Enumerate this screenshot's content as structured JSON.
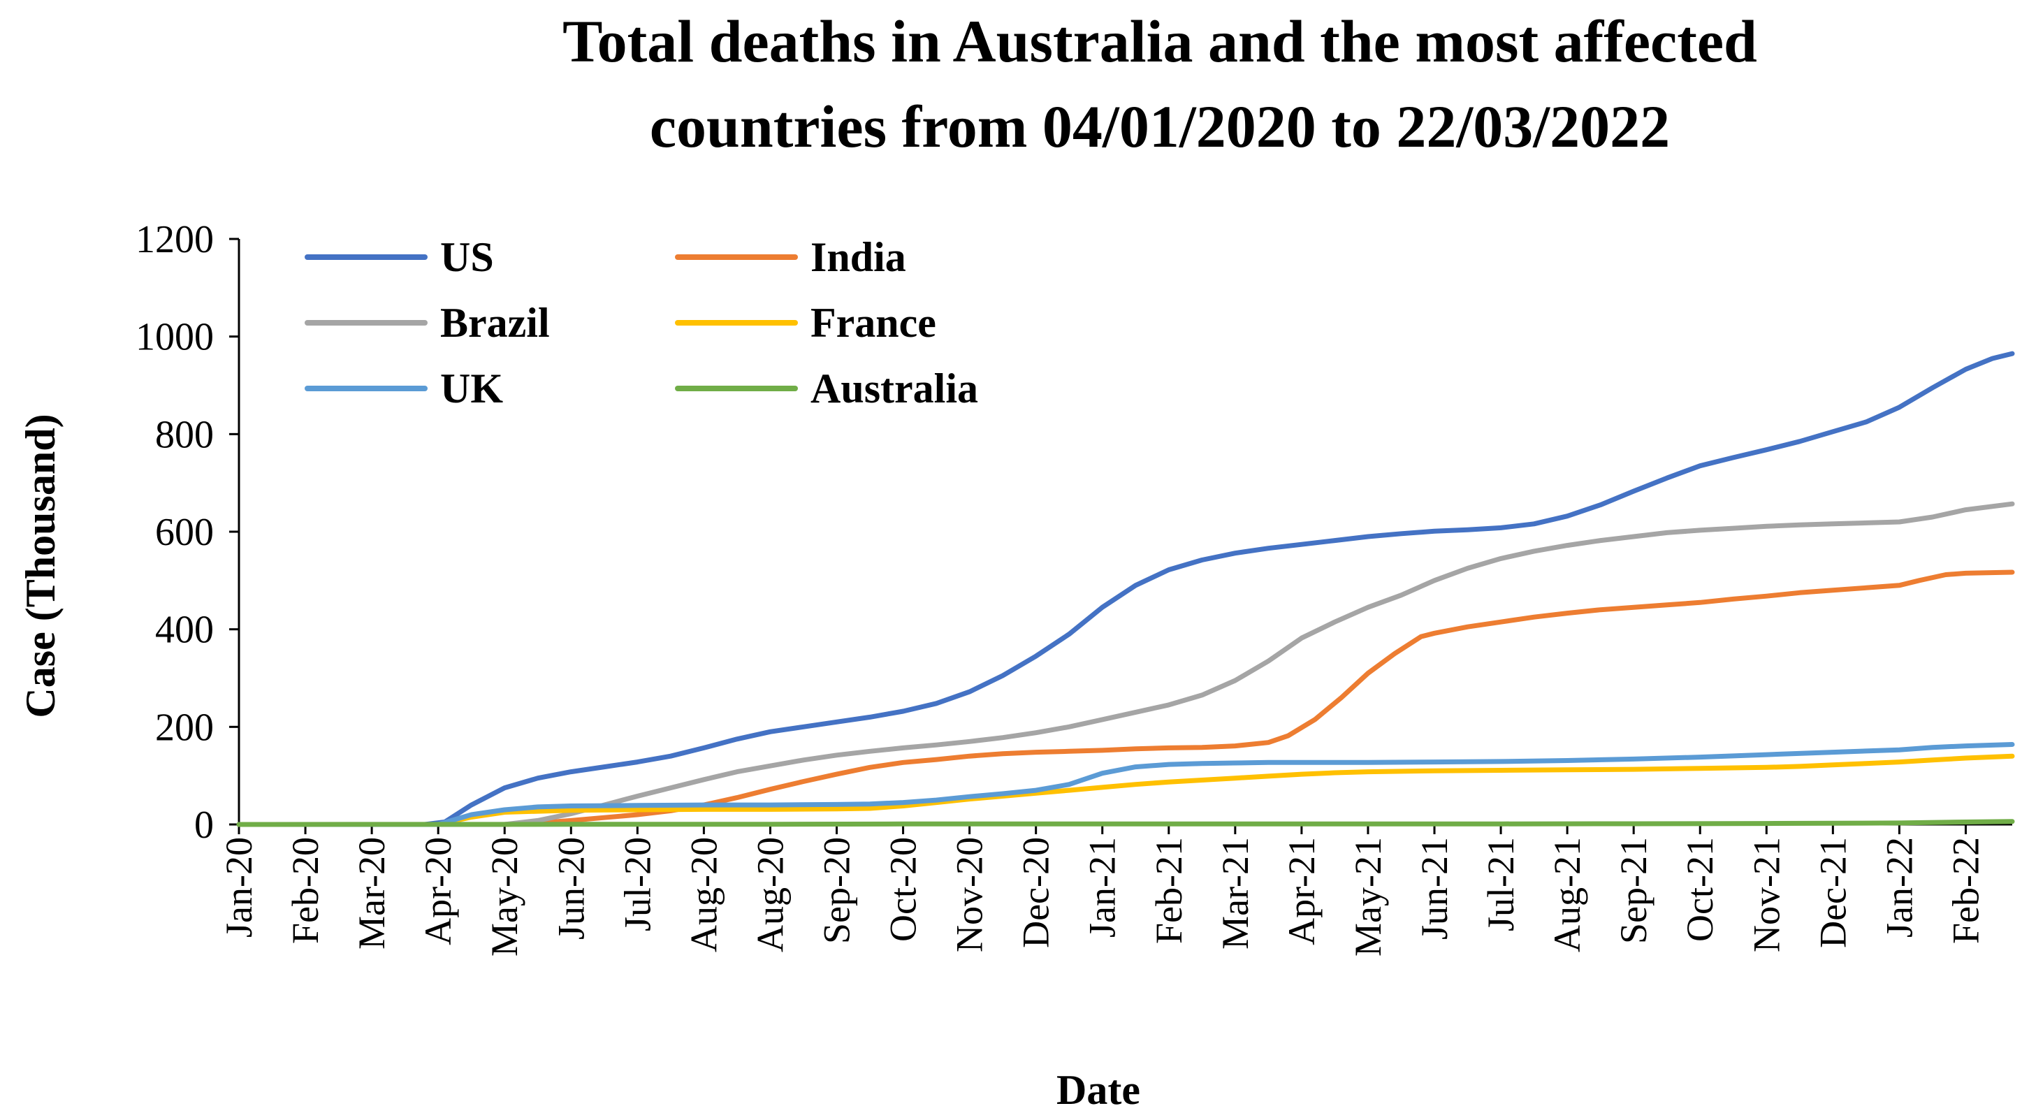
{
  "chart_data": {
    "type": "line",
    "title_lines": [
      "Total deaths in Australia and the most affected",
      "countries from 04/01/2020 to 22/03/2022"
    ],
    "xlabel": "Date",
    "ylabel": "Case (Thousand)",
    "ylim": [
      0,
      1200
    ],
    "yticks": [
      "0",
      "200",
      "400",
      "600",
      "800",
      "1000",
      "1200"
    ],
    "xlim": [
      0,
      26.7
    ],
    "categories": [
      "Jan-20",
      "Feb-20",
      "Mar-20",
      "Apr-20",
      "May-20",
      "Jun-20",
      "Jul-20",
      "Aug-20",
      "Aug-20",
      "Sep-20",
      "Oct-20",
      "Nov-20",
      "Dec-20",
      "Jan-21",
      "Feb-21",
      "Mar-21",
      "Apr-21",
      "May-21",
      "Jun-21",
      "Jul-21",
      "Aug-21",
      "Sep-21",
      "Oct-21",
      "Nov-21",
      "Dec-21",
      "Jan-22",
      "Feb-22"
    ],
    "legend_position": "top-left",
    "series": [
      {
        "name": "US",
        "color": "#4472C4",
        "points": [
          [
            0,
            0
          ],
          [
            2.8,
            0
          ],
          [
            3.1,
            5
          ],
          [
            3.5,
            40
          ],
          [
            4,
            75
          ],
          [
            4.5,
            95
          ],
          [
            5,
            108
          ],
          [
            5.5,
            118
          ],
          [
            6,
            128
          ],
          [
            6.5,
            140
          ],
          [
            7,
            157
          ],
          [
            7.5,
            175
          ],
          [
            8,
            190
          ],
          [
            8.5,
            200
          ],
          [
            9,
            210
          ],
          [
            9.5,
            220
          ],
          [
            10,
            232
          ],
          [
            10.5,
            248
          ],
          [
            11,
            272
          ],
          [
            11.5,
            305
          ],
          [
            12,
            345
          ],
          [
            12.5,
            390
          ],
          [
            13,
            445
          ],
          [
            13.5,
            490
          ],
          [
            14,
            522
          ],
          [
            14.5,
            542
          ],
          [
            15,
            556
          ],
          [
            15.5,
            566
          ],
          [
            16,
            574
          ],
          [
            16.5,
            582
          ],
          [
            17,
            590
          ],
          [
            17.5,
            596
          ],
          [
            18,
            601
          ],
          [
            18.5,
            604
          ],
          [
            19,
            608
          ],
          [
            19.5,
            616
          ],
          [
            20,
            632
          ],
          [
            20.5,
            655
          ],
          [
            21,
            683
          ],
          [
            21.5,
            710
          ],
          [
            22,
            735
          ],
          [
            22.5,
            752
          ],
          [
            23,
            768
          ],
          [
            23.5,
            785
          ],
          [
            24,
            805
          ],
          [
            24.5,
            825
          ],
          [
            25,
            855
          ],
          [
            25.5,
            895
          ],
          [
            26,
            933
          ],
          [
            26.4,
            955
          ],
          [
            26.7,
            965
          ]
        ]
      },
      {
        "name": "India",
        "color": "#ED7D31",
        "points": [
          [
            0,
            0
          ],
          [
            4,
            0
          ],
          [
            4.5,
            3
          ],
          [
            5,
            8
          ],
          [
            5.5,
            14
          ],
          [
            6,
            20
          ],
          [
            6.5,
            28
          ],
          [
            7,
            40
          ],
          [
            7.5,
            55
          ],
          [
            8,
            72
          ],
          [
            8.5,
            88
          ],
          [
            9,
            103
          ],
          [
            9.5,
            117
          ],
          [
            10,
            127
          ],
          [
            10.5,
            133
          ],
          [
            11,
            140
          ],
          [
            11.5,
            145
          ],
          [
            12,
            148
          ],
          [
            12.5,
            150
          ],
          [
            13,
            152
          ],
          [
            13.5,
            155
          ],
          [
            14,
            157
          ],
          [
            14.5,
            158
          ],
          [
            15,
            161
          ],
          [
            15.5,
            168
          ],
          [
            15.8,
            182
          ],
          [
            16.2,
            215
          ],
          [
            16.6,
            260
          ],
          [
            17,
            310
          ],
          [
            17.4,
            350
          ],
          [
            17.8,
            385
          ],
          [
            18,
            392
          ],
          [
            18.5,
            405
          ],
          [
            19,
            415
          ],
          [
            19.5,
            425
          ],
          [
            20,
            433
          ],
          [
            20.5,
            440
          ],
          [
            21,
            445
          ],
          [
            21.5,
            450
          ],
          [
            22,
            455
          ],
          [
            22.5,
            462
          ],
          [
            23,
            468
          ],
          [
            23.5,
            475
          ],
          [
            24,
            480
          ],
          [
            24.5,
            485
          ],
          [
            25,
            490
          ],
          [
            25.3,
            500
          ],
          [
            25.7,
            512
          ],
          [
            26,
            515
          ],
          [
            26.7,
            517
          ]
        ]
      },
      {
        "name": "Brazil",
        "color": "#A5A5A5",
        "points": [
          [
            0,
            0
          ],
          [
            4,
            0
          ],
          [
            4.5,
            8
          ],
          [
            5,
            22
          ],
          [
            5.5,
            40
          ],
          [
            6,
            58
          ],
          [
            6.5,
            75
          ],
          [
            7,
            92
          ],
          [
            7.5,
            108
          ],
          [
            8,
            120
          ],
          [
            8.5,
            132
          ],
          [
            9,
            142
          ],
          [
            9.5,
            150
          ],
          [
            10,
            157
          ],
          [
            10.5,
            163
          ],
          [
            11,
            170
          ],
          [
            11.5,
            178
          ],
          [
            12,
            188
          ],
          [
            12.5,
            200
          ],
          [
            13,
            215
          ],
          [
            13.5,
            230
          ],
          [
            14,
            245
          ],
          [
            14.5,
            265
          ],
          [
            15,
            295
          ],
          [
            15.5,
            335
          ],
          [
            16,
            382
          ],
          [
            16.5,
            415
          ],
          [
            17,
            445
          ],
          [
            17.5,
            470
          ],
          [
            18,
            500
          ],
          [
            18.5,
            525
          ],
          [
            19,
            545
          ],
          [
            19.5,
            560
          ],
          [
            20,
            572
          ],
          [
            20.5,
            582
          ],
          [
            21,
            590
          ],
          [
            21.5,
            598
          ],
          [
            22,
            603
          ],
          [
            22.5,
            607
          ],
          [
            23,
            611
          ],
          [
            23.5,
            614
          ],
          [
            24,
            616
          ],
          [
            24.5,
            618
          ],
          [
            25,
            620
          ],
          [
            25.5,
            630
          ],
          [
            26,
            645
          ],
          [
            26.7,
            657
          ]
        ]
      },
      {
        "name": "France",
        "color": "#FFC000",
        "points": [
          [
            0,
            0
          ],
          [
            3,
            0
          ],
          [
            3.5,
            15
          ],
          [
            4,
            25
          ],
          [
            5,
            29
          ],
          [
            6,
            30
          ],
          [
            7,
            31
          ],
          [
            8,
            31
          ],
          [
            9,
            32
          ],
          [
            9.5,
            33
          ],
          [
            10,
            38
          ],
          [
            10.5,
            45
          ],
          [
            11,
            52
          ],
          [
            11.5,
            58
          ],
          [
            12,
            64
          ],
          [
            12.5,
            70
          ],
          [
            13,
            76
          ],
          [
            13.5,
            82
          ],
          [
            14,
            87
          ],
          [
            14.5,
            91
          ],
          [
            15,
            95
          ],
          [
            15.5,
            99
          ],
          [
            16,
            103
          ],
          [
            16.5,
            106
          ],
          [
            17,
            108
          ],
          [
            18,
            110
          ],
          [
            19,
            111
          ],
          [
            20,
            112
          ],
          [
            21,
            113
          ],
          [
            22,
            115
          ],
          [
            23,
            117
          ],
          [
            23.5,
            119
          ],
          [
            24,
            122
          ],
          [
            24.5,
            125
          ],
          [
            25,
            128
          ],
          [
            25.5,
            132
          ],
          [
            26,
            136
          ],
          [
            26.7,
            140
          ]
        ]
      },
      {
        "name": "UK",
        "color": "#5B9BD5",
        "points": [
          [
            0,
            0
          ],
          [
            3,
            0
          ],
          [
            3.5,
            20
          ],
          [
            4,
            30
          ],
          [
            4.5,
            36
          ],
          [
            5,
            38
          ],
          [
            6,
            39
          ],
          [
            7,
            40
          ],
          [
            8,
            40
          ],
          [
            9,
            41
          ],
          [
            9.5,
            42
          ],
          [
            10,
            45
          ],
          [
            10.5,
            50
          ],
          [
            11,
            57
          ],
          [
            11.5,
            63
          ],
          [
            12,
            70
          ],
          [
            12.5,
            82
          ],
          [
            13,
            105
          ],
          [
            13.5,
            118
          ],
          [
            14,
            123
          ],
          [
            14.5,
            125
          ],
          [
            15,
            126
          ],
          [
            15.5,
            127
          ],
          [
            16,
            127
          ],
          [
            17,
            127
          ],
          [
            18,
            128
          ],
          [
            19,
            129
          ],
          [
            20,
            131
          ],
          [
            21,
            134
          ],
          [
            22,
            138
          ],
          [
            23,
            143
          ],
          [
            24,
            148
          ],
          [
            25,
            153
          ],
          [
            25.5,
            158
          ],
          [
            26,
            161
          ],
          [
            26.7,
            164
          ]
        ]
      },
      {
        "name": "Australia",
        "color": "#70AD47",
        "points": [
          [
            0,
            0
          ],
          [
            5,
            0.3
          ],
          [
            8,
            0.5
          ],
          [
            10,
            1
          ],
          [
            13,
            1
          ],
          [
            16,
            1
          ],
          [
            19,
            1.2
          ],
          [
            21,
            1.5
          ],
          [
            23,
            2
          ],
          [
            25,
            3
          ],
          [
            26,
            5
          ],
          [
            26.7,
            6
          ]
        ]
      }
    ]
  }
}
